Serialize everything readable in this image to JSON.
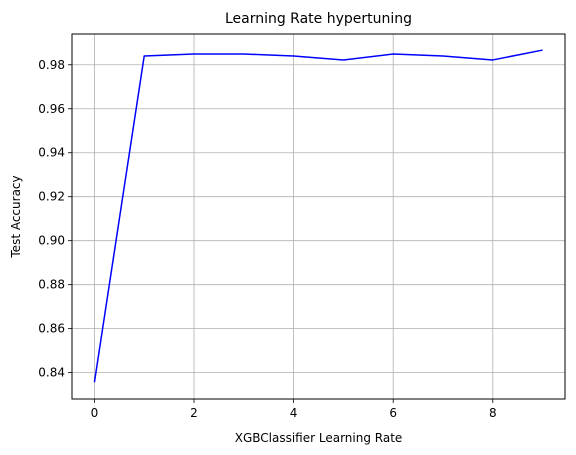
{
  "chart_data": {
    "type": "line",
    "title": "Learning Rate hypertuning",
    "xlabel": "XGBClassifier Learning Rate",
    "ylabel": "Test Accuracy",
    "x": [
      0,
      1,
      2,
      3,
      4,
      5,
      6,
      7,
      8,
      9
    ],
    "series": [
      {
        "values": [
          0.8356,
          0.984,
          0.9849,
          0.9849,
          0.984,
          0.9822,
          0.9849,
          0.984,
          0.9822,
          0.9867
        ],
        "color": "#0000ff"
      }
    ],
    "xlim": [
      -0.45,
      9.45
    ],
    "ylim": [
      0.828,
      0.994
    ],
    "xticks": [
      0,
      2,
      4,
      6,
      8
    ],
    "xtick_labels": [
      "0",
      "2",
      "4",
      "6",
      "8"
    ],
    "yticks": [
      0.84,
      0.86,
      0.88,
      0.9,
      0.92,
      0.94,
      0.96,
      0.98
    ],
    "ytick_labels": [
      "0.84",
      "0.86",
      "0.88",
      "0.90",
      "0.92",
      "0.94",
      "0.96",
      "0.98"
    ],
    "grid": true,
    "grid_color": "#b0b0b0",
    "legend": "none"
  }
}
